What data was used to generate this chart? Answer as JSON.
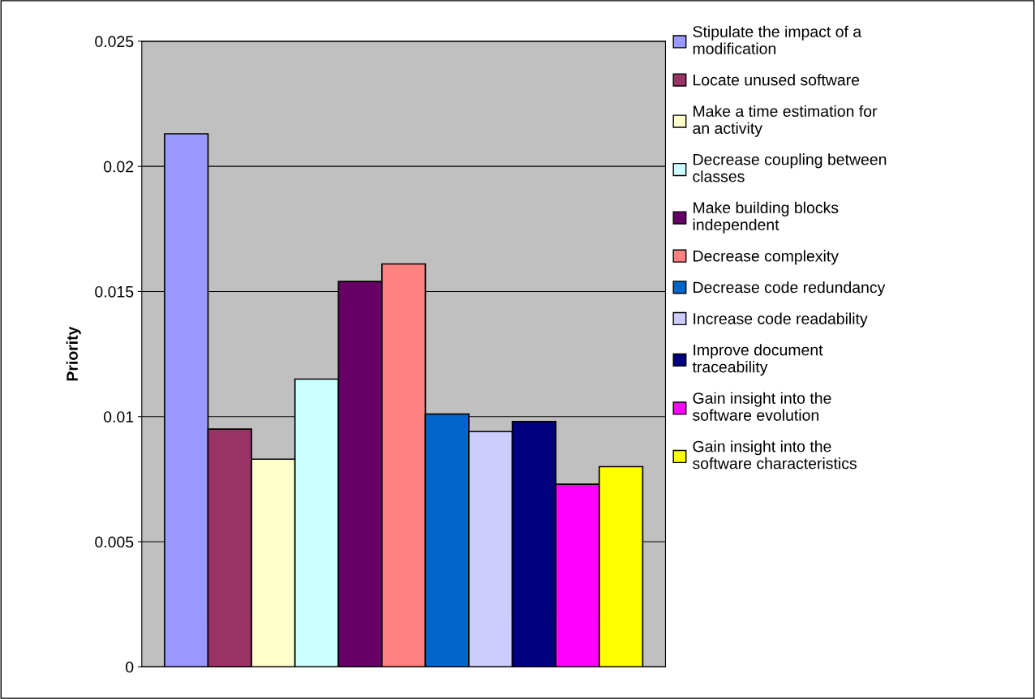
{
  "chart_data": {
    "type": "bar",
    "ylabel": "Priority",
    "categories": [
      null
    ],
    "series": [
      {
        "name": "Stipulate the impact of a modification",
        "color": "#9999ff",
        "values": [
          0.0213
        ]
      },
      {
        "name": "Locate unused software",
        "color": "#993366",
        "values": [
          0.0095
        ]
      },
      {
        "name": "Make a time estimation for an activity",
        "color": "#ffffcc",
        "values": [
          0.0083
        ]
      },
      {
        "name": "Decrease coupling between classes",
        "color": "#ccffff",
        "values": [
          0.0115
        ]
      },
      {
        "name": "Make building blocks independent",
        "color": "#660066",
        "values": [
          0.0154
        ]
      },
      {
        "name": "Decrease complexity",
        "color": "#ff8080",
        "values": [
          0.0161
        ]
      },
      {
        "name": "Decrease code redundancy",
        "color": "#0066cc",
        "values": [
          0.0101
        ]
      },
      {
        "name": "Increase code readability",
        "color": "#ccccff",
        "values": [
          0.0094
        ]
      },
      {
        "name": "Improve document traceability",
        "color": "#000080",
        "values": [
          0.0098
        ]
      },
      {
        "name": "Gain insight into the software evolution",
        "color": "#ff00ff",
        "values": [
          0.0073
        ]
      },
      {
        "name": "Gain insight into the software characteristics",
        "color": "#ffff00",
        "values": [
          0.008
        ]
      }
    ],
    "ylim": [
      0,
      0.025
    ],
    "yticks": [
      0,
      0.005,
      0.01,
      0.015,
      0.02,
      0.025
    ],
    "grid": "y",
    "legend": "right"
  }
}
